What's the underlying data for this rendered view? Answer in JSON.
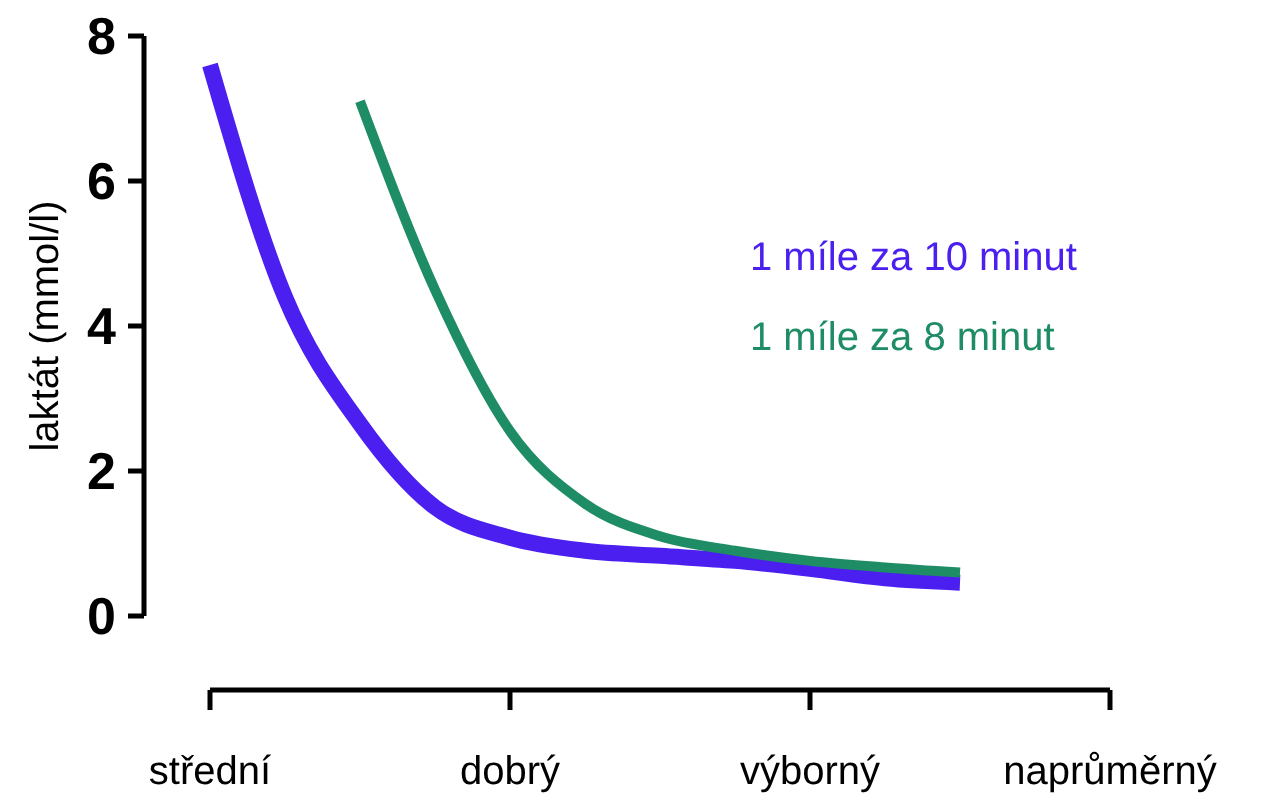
{
  "chart_data": {
    "type": "line",
    "ylabel": "laktát (mmol/l)",
    "categories": [
      "střední",
      null,
      null,
      null,
      "dobrý",
      null,
      null,
      null,
      "výborný",
      null,
      null,
      null,
      "naprůměrný"
    ],
    "ylim": [
      0,
      8
    ],
    "yticks": [
      0,
      2,
      4,
      6,
      8
    ],
    "legend": "right",
    "marker": "none",
    "line_style": "solid",
    "grid": false,
    "series": [
      {
        "name": "1 míle za 10 minut",
        "color": "#4a1ff0",
        "values": [
          7.6,
          4.4,
          2.65,
          1.5,
          1.08,
          0.9,
          0.83,
          0.76,
          0.65,
          0.52,
          0.46,
          null,
          null
        ]
      },
      {
        "name": "1 míle za 8 minut",
        "color": "#1e8c64",
        "values": [
          null,
          null,
          7.1,
          4.5,
          2.55,
          1.55,
          1.1,
          0.9,
          0.76,
          0.67,
          0.6,
          null,
          null
        ]
      }
    ]
  }
}
